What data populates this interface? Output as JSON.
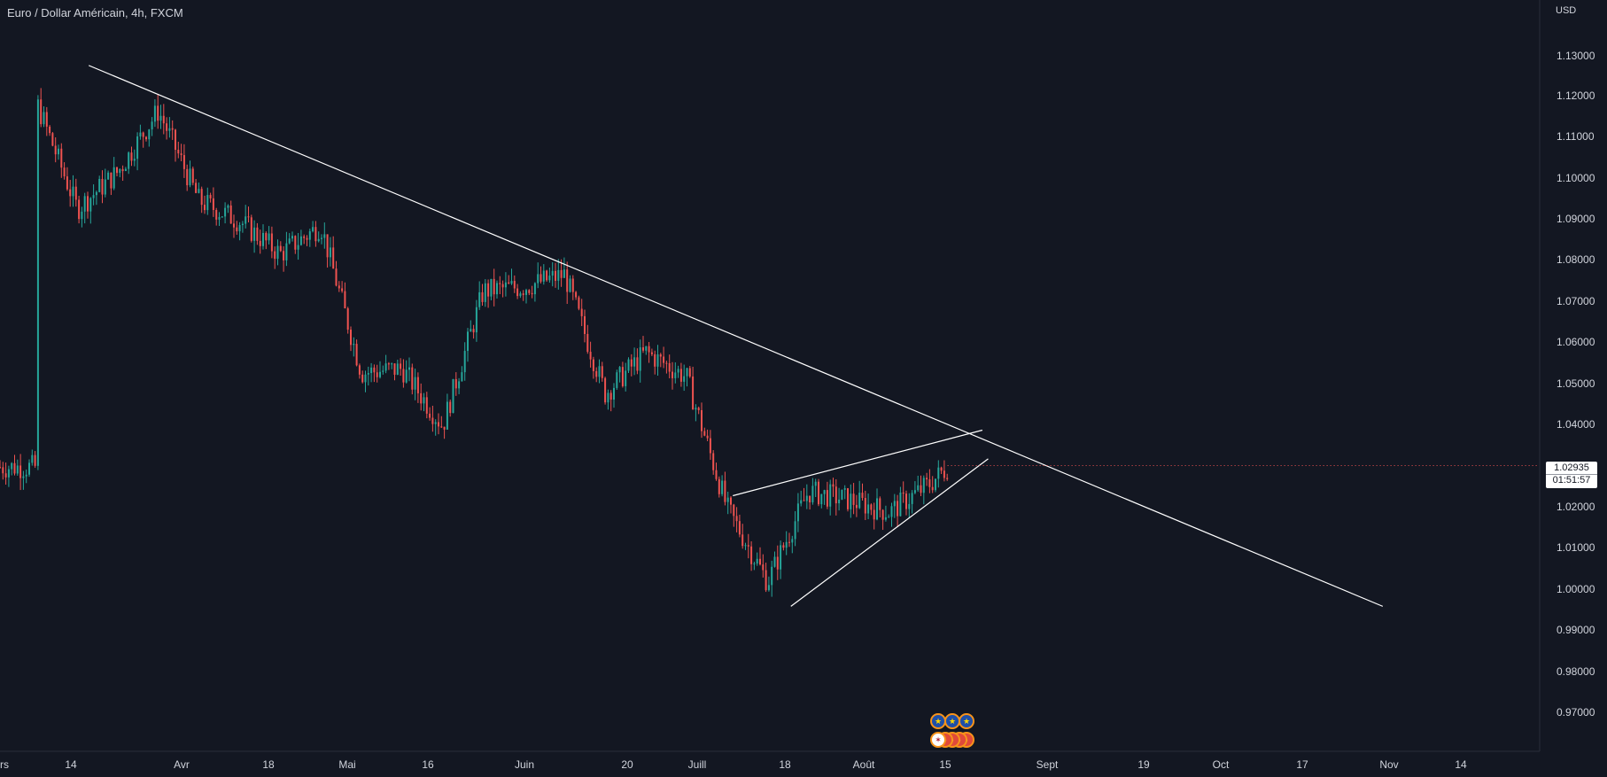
{
  "header": {
    "title": "Euro / Dollar Américain, 4h, FXCM",
    "currency": "USD"
  },
  "price_axis": {
    "ticks": [
      "1.13000",
      "1.12000",
      "1.11000",
      "1.10000",
      "1.09000",
      "1.08000",
      "1.07000",
      "1.06000",
      "1.05000",
      "1.04000",
      "1.02000",
      "1.01000",
      "1.00000",
      "0.99000",
      "0.98000",
      "0.97000"
    ]
  },
  "time_axis": {
    "ticks": [
      "rs",
      "14",
      "Avr",
      "18",
      "Mai",
      "16",
      "Juin",
      "20",
      "Juill",
      "18",
      "Août",
      "15",
      "Sept",
      "19",
      "Oct",
      "17",
      "Nov",
      "14"
    ]
  },
  "last_price": {
    "value": "1.02935",
    "countdown": "01:51:57"
  },
  "events": {
    "row1": [
      "eu-flag-icon",
      "eu-flag-icon",
      "eu-flag-icon"
    ],
    "row2": [
      "us-flag-icon",
      "event-icon",
      "event-icon",
      "event-icon",
      "event-icon"
    ]
  },
  "colors": {
    "background": "#131722",
    "up": "#26a69a",
    "down": "#ef5350",
    "trendline": "#ffffff"
  },
  "chart_data": {
    "type": "candlestick",
    "symbol": "EUR/USD",
    "timeframe": "4h",
    "ylim": [
      0.965,
      1.135
    ],
    "x": [
      "2022-03-07",
      "2022-03-14",
      "2022-03-21",
      "2022-03-28",
      "2022-04-04",
      "2022-04-11",
      "2022-04-18",
      "2022-04-25",
      "2022-05-02",
      "2022-05-09",
      "2022-05-16",
      "2022-05-23",
      "2022-05-30",
      "2022-06-06",
      "2022-06-13",
      "2022-06-20",
      "2022-06-27",
      "2022-07-04",
      "2022-07-11",
      "2022-07-18",
      "2022-07-25",
      "2022-08-01",
      "2022-08-08",
      "2022-08-11"
    ],
    "close": [
      1.118,
      1.092,
      1.101,
      1.116,
      1.094,
      1.089,
      1.081,
      1.088,
      1.052,
      1.053,
      1.039,
      1.072,
      1.073,
      1.076,
      1.047,
      1.057,
      1.051,
      1.019,
      1.001,
      1.023,
      1.021,
      1.018,
      1.025,
      1.029
    ],
    "trendlines": [
      {
        "from": [
          "2022-03-16",
          1.127
        ],
        "to": [
          "2022-10-25",
          0.995
        ]
      },
      {
        "from": [
          "2022-07-15",
          0.995
        ],
        "to": [
          "2022-08-18",
          1.031
        ]
      },
      {
        "from": [
          "2022-07-05",
          1.022
        ],
        "to": [
          "2022-08-17",
          1.038
        ]
      }
    ],
    "last_value": 1.02935
  }
}
